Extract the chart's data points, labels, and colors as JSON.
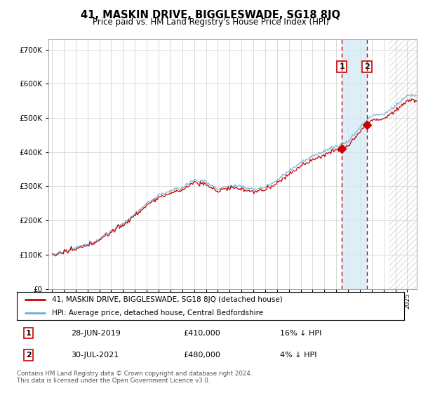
{
  "title": "41, MASKIN DRIVE, BIGGLESWADE, SG18 8JQ",
  "subtitle": "Price paid vs. HM Land Registry's House Price Index (HPI)",
  "legend_line1": "41, MASKIN DRIVE, BIGGLESWADE, SG18 8JQ (detached house)",
  "legend_line2": "HPI: Average price, detached house, Central Bedfordshire",
  "footer": "Contains HM Land Registry data © Crown copyright and database right 2024.\nThis data is licensed under the Open Government Licence v3.0.",
  "transaction1_date": "28-JUN-2019",
  "transaction1_price": "£410,000",
  "transaction1_hpi": "16% ↓ HPI",
  "transaction2_date": "30-JUL-2021",
  "transaction2_price": "£480,000",
  "transaction2_hpi": "4% ↓ HPI",
  "sale1_year": 2019.49,
  "sale1_price": 410000,
  "sale2_year": 2021.58,
  "sale2_price": 480000,
  "hpi_color": "#6baed6",
  "price_color": "#cc0000",
  "vline_color": "#cc0000",
  "shade_color": "#d0e8f5",
  "ylim_max": 730000,
  "background_color": "#ffffff",
  "grid_color": "#cccccc"
}
